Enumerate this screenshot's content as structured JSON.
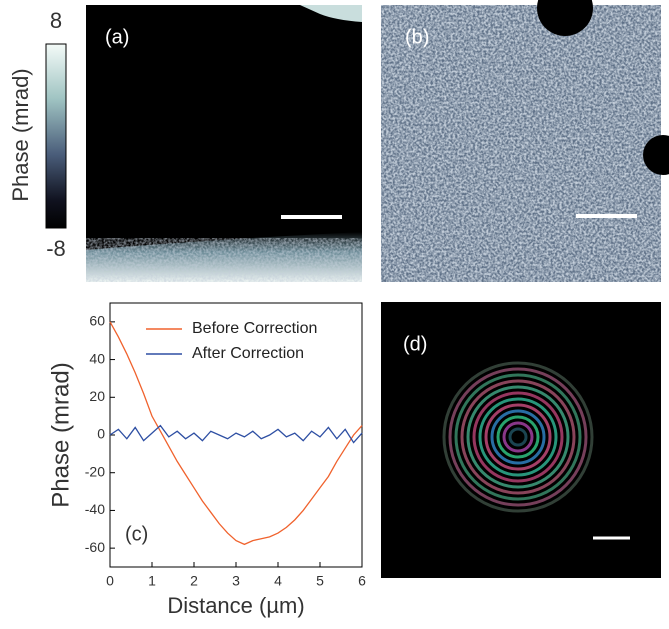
{
  "figure": {
    "colorbar": {
      "label": "Phase (mrad)",
      "clim": [
        -8,
        8
      ],
      "ticks": [
        8,
        -8
      ]
    },
    "panel_labels": [
      "(a)",
      "(b)",
      "(d)"
    ]
  },
  "chart_data": {
    "type": "line",
    "annotation": "(c)",
    "x_label": "Distance (µm)",
    "y_label": "Phase (mrad)",
    "x": [
      0,
      0.2,
      0.4,
      0.6,
      0.8,
      1.0,
      1.2,
      1.4,
      1.6,
      1.8,
      2.0,
      2.2,
      2.4,
      2.6,
      2.8,
      3.0,
      3.2,
      3.4,
      3.6,
      3.8,
      4.0,
      4.2,
      4.4,
      4.6,
      4.8,
      5.0,
      5.2,
      5.4,
      5.6,
      5.8,
      6.0
    ],
    "series": [
      {
        "name": "Before Correction",
        "color": "#f0622d",
        "values": [
          60,
          52,
          43,
          33,
          22,
          10,
          2,
          -6,
          -14,
          -21,
          -28,
          -35,
          -41,
          -47,
          -52,
          -56,
          -58,
          -56,
          -55,
          -54,
          -52,
          -49,
          -45,
          -40,
          -34,
          -28,
          -22,
          -14,
          -7,
          0,
          5
        ]
      },
      {
        "name": "After Correction",
        "color": "#2e4fa3",
        "values": [
          0,
          3,
          -2,
          4,
          -3,
          1,
          5,
          -1,
          2,
          -2,
          1,
          -3,
          2,
          0,
          -2,
          1,
          -1,
          2,
          -2,
          0,
          3,
          -1,
          1,
          -3,
          2,
          -1,
          4,
          -2,
          3,
          -4,
          1
        ]
      }
    ],
    "xlim": [
      0,
      6
    ],
    "xticks": [
      0,
      1,
      2,
      3,
      4,
      5,
      6
    ],
    "ylim": [
      -70,
      70
    ],
    "yticks": [
      -60,
      -40,
      -20,
      0,
      20,
      40,
      60
    ],
    "legend": "top-right"
  }
}
